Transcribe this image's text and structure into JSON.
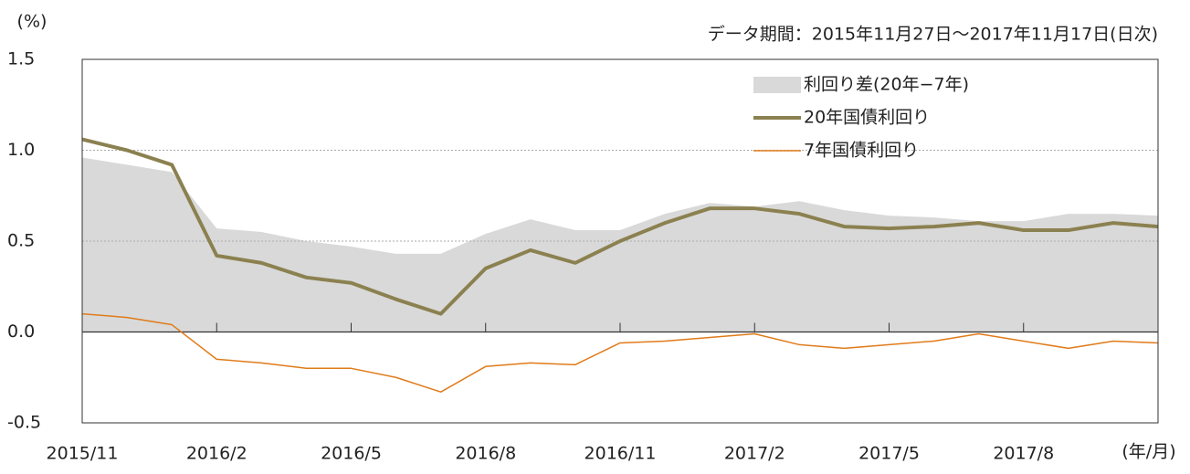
{
  "chart_data": {
    "type": "line",
    "title_note": "データ期間：2015年11月27日～2017年11月17日(日次)",
    "y_unit": "(%)",
    "x_unit": "(年/月)",
    "x": [
      "2015/11",
      "2015/12",
      "2016/1",
      "2016/2",
      "2016/3",
      "2016/4",
      "2016/5",
      "2016/6",
      "2016/7",
      "2016/8",
      "2016/9",
      "2016/10",
      "2016/11",
      "2016/12",
      "2017/1",
      "2017/2",
      "2017/3",
      "2017/4",
      "2017/5",
      "2017/6",
      "2017/7",
      "2017/8",
      "2017/9",
      "2017/10",
      "2017/11"
    ],
    "xticks": [
      "2015/11",
      "2016/2",
      "2016/5",
      "2016/8",
      "2016/11",
      "2017/2",
      "2017/5",
      "2017/8"
    ],
    "series": [
      {
        "name": "利回り差(20年−7年)",
        "kind": "area",
        "color": "#d9d9d9",
        "values": [
          0.96,
          0.92,
          0.88,
          0.57,
          0.55,
          0.5,
          0.47,
          0.43,
          0.43,
          0.54,
          0.62,
          0.56,
          0.56,
          0.65,
          0.71,
          0.69,
          0.72,
          0.67,
          0.64,
          0.63,
          0.61,
          0.61,
          0.65,
          0.65,
          0.64
        ]
      },
      {
        "name": "20年国債利回り",
        "kind": "line",
        "color": "#8b8150",
        "values": [
          1.06,
          1.0,
          0.92,
          0.42,
          0.38,
          0.3,
          0.27,
          0.18,
          0.1,
          0.35,
          0.45,
          0.38,
          0.5,
          0.6,
          0.68,
          0.68,
          0.65,
          0.58,
          0.57,
          0.58,
          0.6,
          0.56,
          0.56,
          0.6,
          0.58
        ]
      },
      {
        "name": "7年国債利回り",
        "kind": "line",
        "color": "#e07b1a",
        "values": [
          0.1,
          0.08,
          0.04,
          -0.15,
          -0.17,
          -0.2,
          -0.2,
          -0.25,
          -0.33,
          -0.19,
          -0.17,
          -0.18,
          -0.06,
          -0.05,
          -0.03,
          -0.01,
          -0.07,
          -0.09,
          -0.07,
          -0.05,
          -0.01,
          -0.05,
          -0.09,
          -0.05,
          -0.06
        ]
      }
    ],
    "ylim": [
      -0.5,
      1.5
    ],
    "yticks": [
      {
        "value": 1.5,
        "label": "1.5"
      },
      {
        "value": 1.0,
        "label": "1.0"
      },
      {
        "value": 0.5,
        "label": "0.5"
      },
      {
        "value": 0.0,
        "label": "0.0"
      },
      {
        "value": -0.5,
        "label": "-0.5"
      }
    ],
    "grid": true,
    "legend": "upper right"
  }
}
